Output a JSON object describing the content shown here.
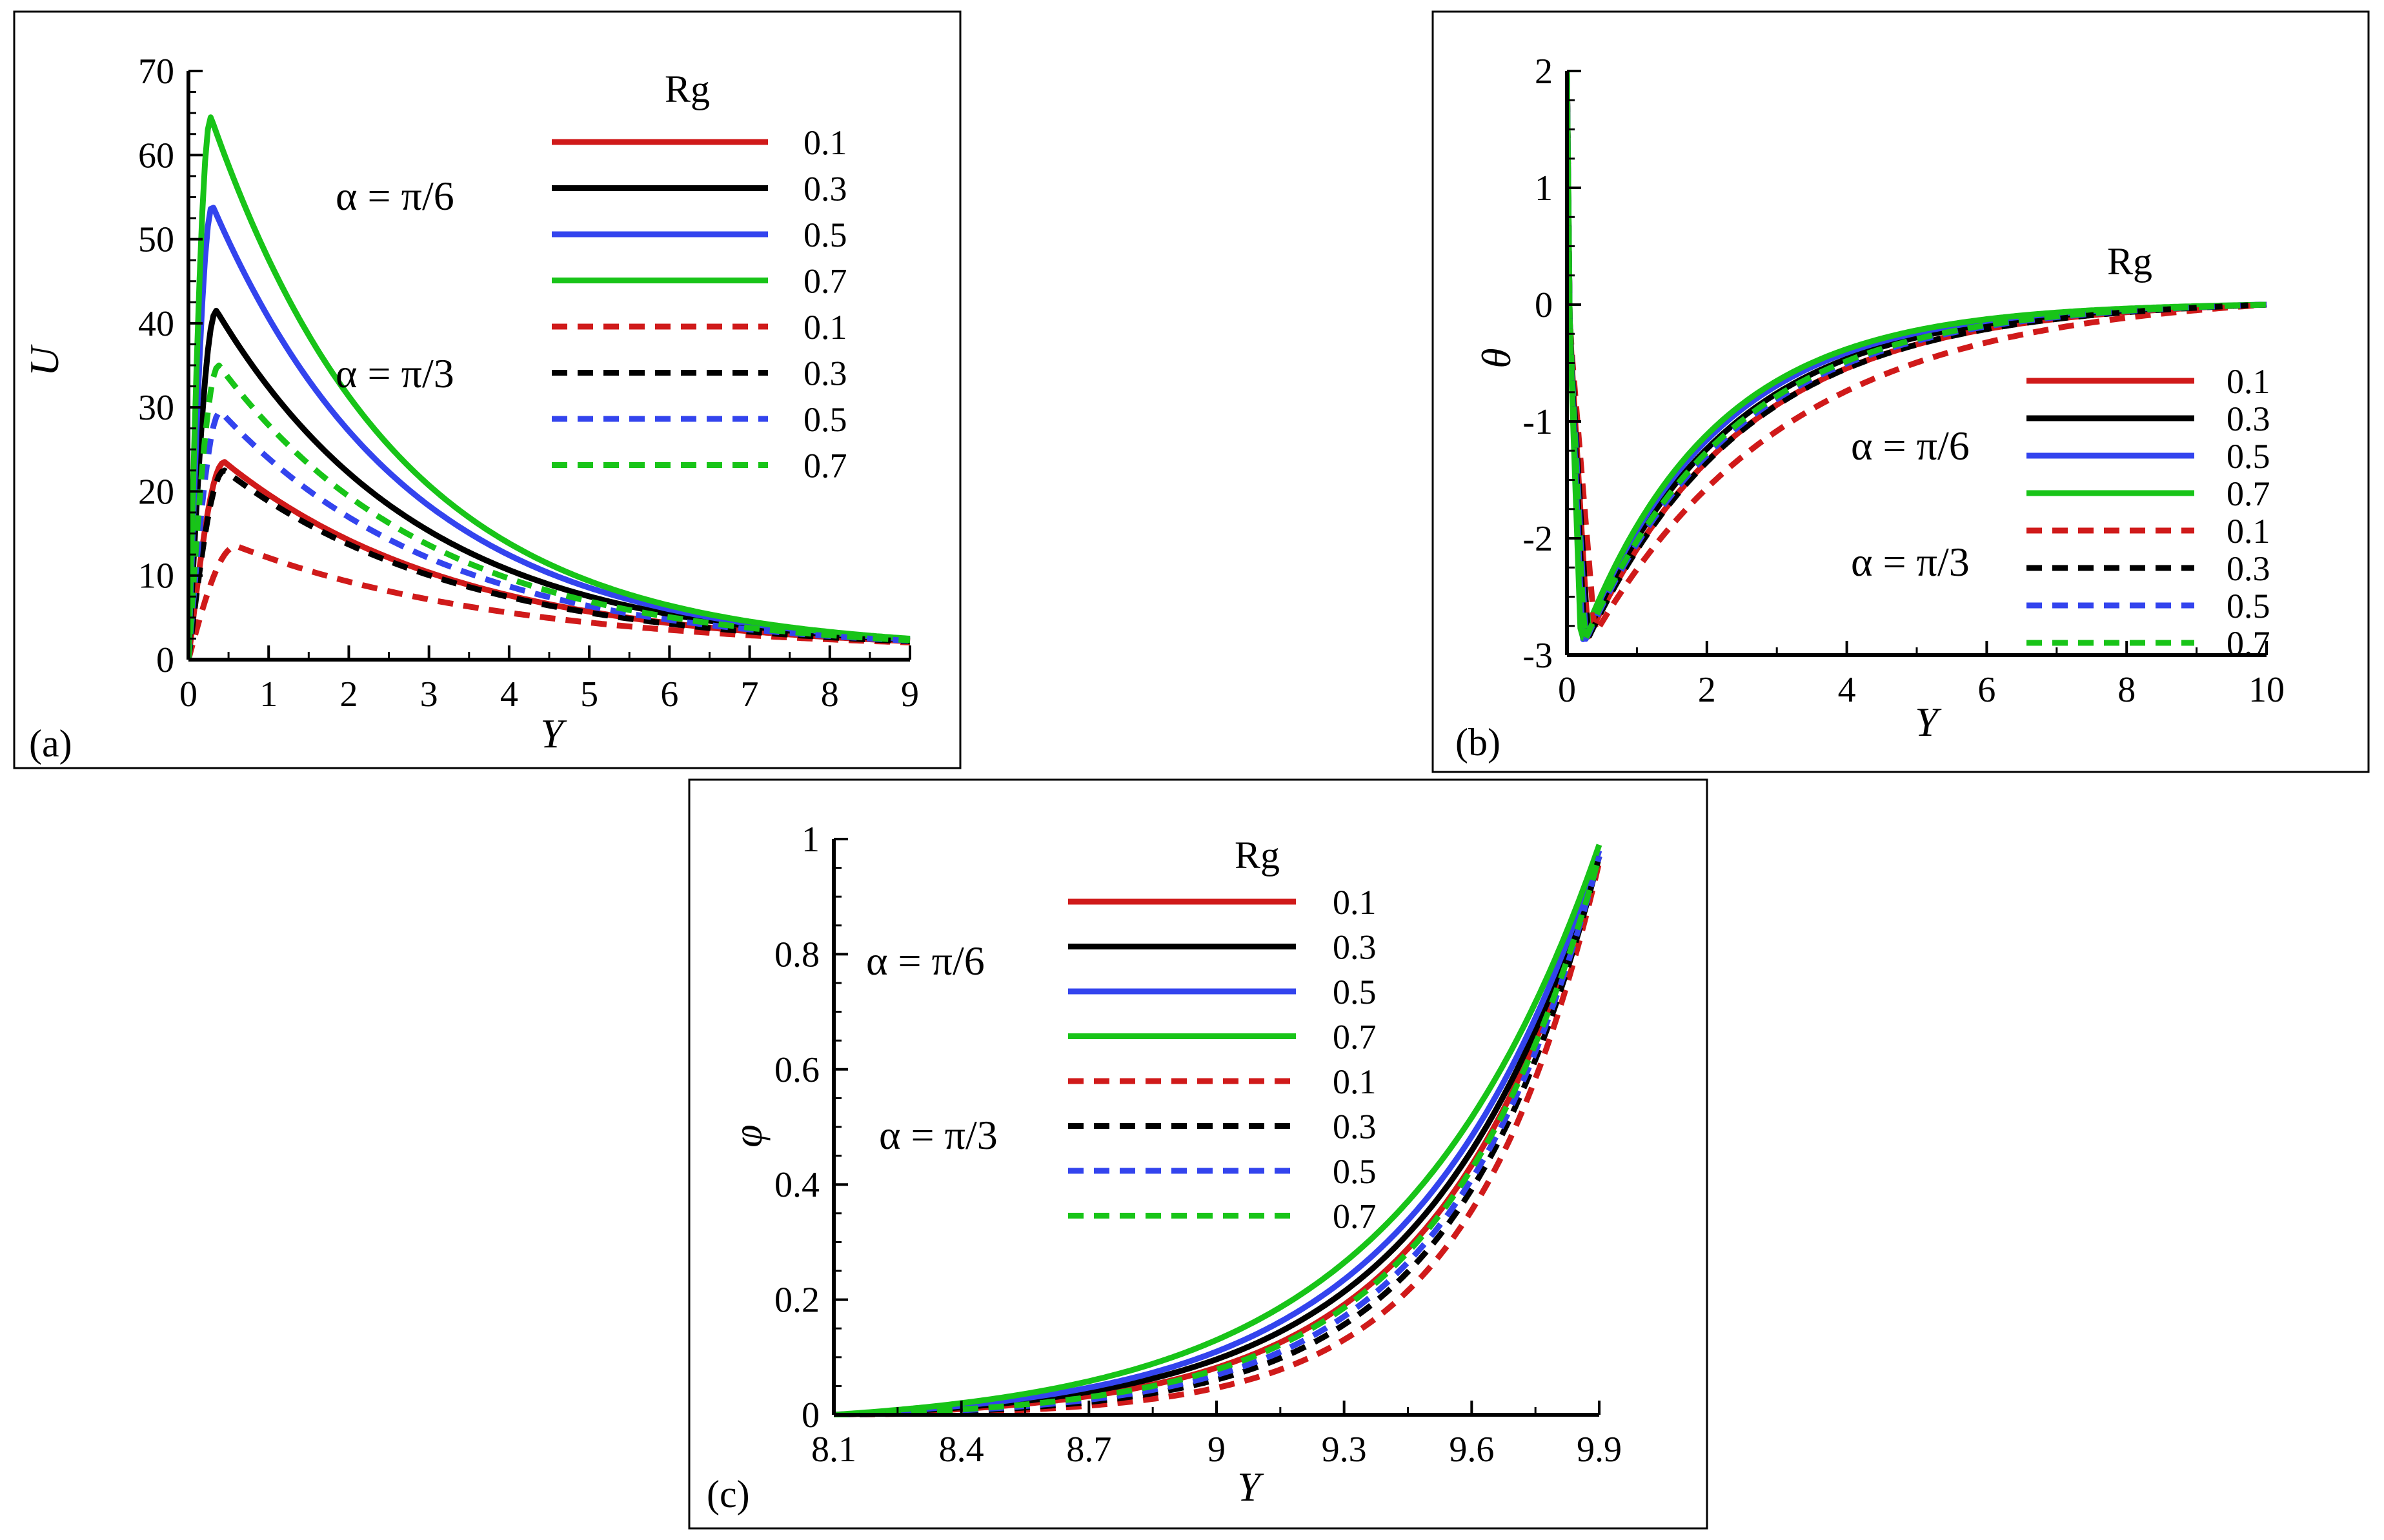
{
  "colors": {
    "0.1": "#d01a1a",
    "0.3": "#000000",
    "0.5": "#3344ee",
    "0.7": "#18c418"
  },
  "legend": {
    "title": "Rg",
    "alpha_solid": "α = π/6",
    "alpha_dashed": "α = π/3",
    "entries": [
      {
        "label": "0.1",
        "color": "#d01a1a",
        "style": "solid"
      },
      {
        "label": "0.3",
        "color": "#000000",
        "style": "solid"
      },
      {
        "label": "0.5",
        "color": "#3344ee",
        "style": "solid"
      },
      {
        "label": "0.7",
        "color": "#18c418",
        "style": "solid"
      },
      {
        "label": "0.1",
        "color": "#d01a1a",
        "style": "dashed"
      },
      {
        "label": "0.3",
        "color": "#000000",
        "style": "dashed"
      },
      {
        "label": "0.5",
        "color": "#3344ee",
        "style": "dashed"
      },
      {
        "label": "0.7",
        "color": "#18c418",
        "style": "dashed"
      }
    ]
  },
  "chart_data": [
    {
      "type": "line",
      "panel_label": "(a)",
      "xlabel": "Y",
      "ylabel": "U",
      "xlim": [
        0,
        9
      ],
      "ylim": [
        0,
        70
      ],
      "xticks": [
        "0",
        "1",
        "2",
        "3",
        "4",
        "5",
        "6",
        "7",
        "8",
        "9"
      ],
      "yticks": [
        "0",
        "10",
        "20",
        "30",
        "40",
        "50",
        "60",
        "70"
      ],
      "curve_model": "peak",
      "series": [
        {
          "name": "Rg = 0.1, α = π/6",
          "rg": "0.1",
          "style": "solid",
          "peak_x": 0.45,
          "peak_y": 23.5,
          "end_y": 1.0
        },
        {
          "name": "Rg = 0.3, α = π/6",
          "rg": "0.3",
          "style": "solid",
          "peak_x": 0.35,
          "peak_y": 41.5,
          "end_y": 1.0
        },
        {
          "name": "Rg = 0.5, α = π/6",
          "rg": "0.5",
          "style": "solid",
          "peak_x": 0.3,
          "peak_y": 54.0,
          "end_y": 1.0
        },
        {
          "name": "Rg = 0.7, α = π/6",
          "rg": "0.7",
          "style": "solid",
          "peak_x": 0.28,
          "peak_y": 64.5,
          "end_y": 1.0
        },
        {
          "name": "Rg = 0.1, α = π/3",
          "rg": "0.1",
          "style": "dashed",
          "peak_x": 0.6,
          "peak_y": 13.5,
          "end_y": 1.0
        },
        {
          "name": "Rg = 0.3, α = π/3",
          "rg": "0.3",
          "style": "dashed",
          "peak_x": 0.45,
          "peak_y": 22.5,
          "end_y": 1.0
        },
        {
          "name": "Rg = 0.5, α = π/3",
          "rg": "0.5",
          "style": "dashed",
          "peak_x": 0.4,
          "peak_y": 29.5,
          "end_y": 1.0
        },
        {
          "name": "Rg = 0.7, α = π/3",
          "rg": "0.7",
          "style": "dashed",
          "peak_x": 0.38,
          "peak_y": 35.0,
          "end_y": 1.0
        }
      ]
    },
    {
      "type": "line",
      "panel_label": "(b)",
      "xlabel": "Y",
      "ylabel": "θ",
      "xlim": [
        0,
        10
      ],
      "ylim": [
        -3,
        2
      ],
      "xticks": [
        "0",
        "2",
        "4",
        "6",
        "8",
        "10"
      ],
      "yticks": [
        "-3",
        "-2",
        "-1",
        "0",
        "1",
        "2"
      ],
      "curve_model": "dip",
      "series": [
        {
          "name": "Rg = 0.1, α = π/6",
          "rg": "0.1",
          "style": "solid",
          "min_x": 0.3,
          "min_y": -2.85,
          "decay": 0.44
        },
        {
          "name": "Rg = 0.3, α = π/6",
          "rg": "0.3",
          "style": "solid",
          "min_x": 0.25,
          "min_y": -2.87,
          "decay": 0.48
        },
        {
          "name": "Rg = 0.5, α = π/6",
          "rg": "0.5",
          "style": "solid",
          "min_x": 0.22,
          "min_y": -2.88,
          "decay": 0.51
        },
        {
          "name": "Rg = 0.7, α = π/6",
          "rg": "0.7",
          "style": "solid",
          "min_x": 0.2,
          "min_y": -2.9,
          "decay": 0.53
        },
        {
          "name": "Rg = 0.1, α = π/3",
          "rg": "0.1",
          "style": "dashed",
          "min_x": 0.4,
          "min_y": -2.82,
          "decay": 0.36
        },
        {
          "name": "Rg = 0.3, α = π/3",
          "rg": "0.3",
          "style": "dashed",
          "min_x": 0.3,
          "min_y": -2.86,
          "decay": 0.44
        },
        {
          "name": "Rg = 0.5, α = π/3",
          "rg": "0.5",
          "style": "dashed",
          "min_x": 0.27,
          "min_y": -2.87,
          "decay": 0.46
        },
        {
          "name": "Rg = 0.7, α = π/3",
          "rg": "0.7",
          "style": "dashed",
          "min_x": 0.25,
          "min_y": -2.88,
          "decay": 0.47
        }
      ]
    },
    {
      "type": "line",
      "panel_label": "(c)",
      "xlabel": "Y",
      "ylabel": "φ",
      "xlim": [
        8.1,
        9.9
      ],
      "ylim": [
        0,
        1
      ],
      "xticks": [
        "8.1",
        "8.4",
        "8.7",
        "9",
        "9.3",
        "9.6",
        "9.9"
      ],
      "yticks": [
        "0",
        "0.2",
        "0.4",
        "0.6",
        "0.8",
        "1"
      ],
      "curve_model": "growth",
      "series": [
        {
          "name": "Rg = 0.1, α = π/6",
          "rg": "0.1",
          "style": "solid",
          "rate": 2.65,
          "end_y": 0.97
        },
        {
          "name": "Rg = 0.3, α = π/6",
          "rg": "0.3",
          "style": "solid",
          "rate": 2.45,
          "end_y": 0.97
        },
        {
          "name": "Rg = 0.5, α = π/6",
          "rg": "0.5",
          "style": "solid",
          "rate": 2.3,
          "end_y": 0.98
        },
        {
          "name": "Rg = 0.7, α = π/6",
          "rg": "0.7",
          "style": "solid",
          "rate": 2.1,
          "end_y": 0.99
        },
        {
          "name": "Rg = 0.1, α = π/3",
          "rg": "0.1",
          "style": "dashed",
          "rate": 3.3,
          "end_y": 0.96
        },
        {
          "name": "Rg = 0.3, α = π/3",
          "rg": "0.3",
          "style": "dashed",
          "rate": 3.0,
          "end_y": 0.97
        },
        {
          "name": "Rg = 0.5, α = π/3",
          "rg": "0.5",
          "style": "dashed",
          "rate": 2.85,
          "end_y": 0.97
        },
        {
          "name": "Rg = 0.7, α = π/3",
          "rg": "0.7",
          "style": "dashed",
          "rate": 2.7,
          "end_y": 0.97
        }
      ]
    }
  ]
}
